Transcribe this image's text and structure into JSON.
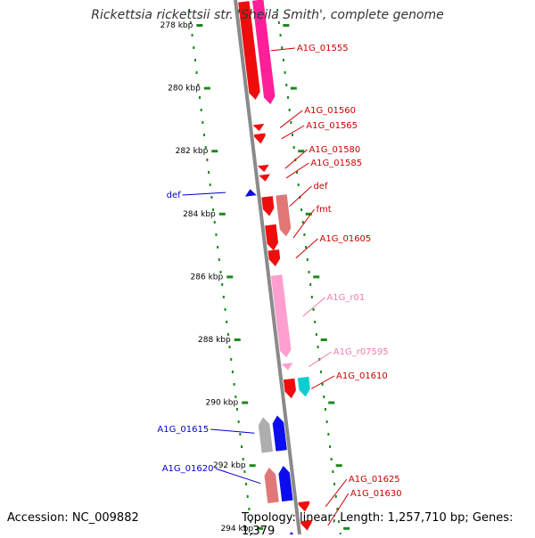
{
  "title": "Rickettsia rickettsii str. 'Sheila Smith', complete genome",
  "footer": {
    "accession": "Accession: NC_009882",
    "summary": "Topology: linear; Length: 1,257,710 bp; Genes: 1,379"
  },
  "colors": {
    "backbone": "#8a8a8a",
    "tick": "#1a8a1a",
    "forward_label": "#cc0000",
    "reverse_label": "#0000cc",
    "rna_label": "#f07cb0"
  },
  "ruler": {
    "unit": "kbp",
    "ticks": [
      {
        "kb": 278,
        "label": "278 kbp"
      },
      {
        "kb": 280,
        "label": "280 kbp"
      },
      {
        "kb": 282,
        "label": "282 kbp"
      },
      {
        "kb": 284,
        "label": "284 kbp"
      },
      {
        "kb": 286,
        "label": "286 kbp"
      },
      {
        "kb": 288,
        "label": "288 kbp"
      },
      {
        "kb": 290,
        "label": "290 kbp"
      },
      {
        "kb": 292,
        "label": "292 kbp"
      },
      {
        "kb": 294,
        "label": "294 kbp"
      }
    ]
  },
  "features": [
    {
      "name": "A1G_01555",
      "strand": "+",
      "track": 1,
      "start_kb": 277.3,
      "end_kb": 280.4,
      "color": "#ee0000"
    },
    {
      "name": "",
      "strand": "+",
      "track": 2,
      "start_kb": 277.3,
      "end_kb": 280.6,
      "color": "#ff1493"
    },
    {
      "name": "A1G_01560",
      "strand": "+",
      "track": 1,
      "start_kb": 281.2,
      "end_kb": 281.4,
      "color": "#ee0000"
    },
    {
      "name": "A1G_01565",
      "strand": "+",
      "track": 1,
      "start_kb": 281.5,
      "end_kb": 281.8,
      "color": "#ee0000"
    },
    {
      "name": "A1G_01580",
      "strand": "+",
      "track": 1,
      "start_kb": 282.5,
      "end_kb": 282.7,
      "color": "#ee0000"
    },
    {
      "name": "A1G_01585",
      "strand": "+",
      "track": 1,
      "start_kb": 282.8,
      "end_kb": 283.0,
      "color": "#ee0000"
    },
    {
      "name": "def",
      "strand": "-",
      "track": -1,
      "start_kb": 283.2,
      "end_kb": 283.4,
      "color": "#0000dd"
    },
    {
      "name": "def",
      "strand": "+",
      "track": 1,
      "start_kb": 283.5,
      "end_kb": 284.1,
      "color": "#ee0000"
    },
    {
      "name": "",
      "strand": "+",
      "track": 2,
      "start_kb": 283.5,
      "end_kb": 284.8,
      "color": "#e07070"
    },
    {
      "name": "fmt",
      "strand": "+",
      "track": 1,
      "start_kb": 284.4,
      "end_kb": 285.2,
      "color": "#ee0000"
    },
    {
      "name": "A1G_01605",
      "strand": "+",
      "track": 1,
      "start_kb": 285.2,
      "end_kb": 285.7,
      "color": "#ee0000"
    },
    {
      "name": "A1G_r01",
      "strand": "+",
      "track": 1,
      "start_kb": 286.0,
      "end_kb": 288.6,
      "color": "#ff9acd"
    },
    {
      "name": "A1G_r07595",
      "strand": "+",
      "track": 1,
      "start_kb": 288.8,
      "end_kb": 289.0,
      "color": "#ff9acd"
    },
    {
      "name": "A1G_01610",
      "strand": "+",
      "track": 1,
      "start_kb": 289.3,
      "end_kb": 289.9,
      "color": "#ee0000"
    },
    {
      "name": "",
      "strand": "+",
      "track": 2,
      "start_kb": 289.3,
      "end_kb": 289.9,
      "color": "#00cccc"
    },
    {
      "name": "A1G_01615",
      "strand": "-",
      "track": -1,
      "start_kb": 290.4,
      "end_kb": 291.5,
      "color": "#0000ee"
    },
    {
      "name": "",
      "strand": "-",
      "track": -2,
      "start_kb": 290.4,
      "end_kb": 291.5,
      "color": "#aaaaaa"
    },
    {
      "name": "A1G_01620",
      "strand": "-",
      "track": -1,
      "start_kb": 292.0,
      "end_kb": 293.1,
      "color": "#0000ee"
    },
    {
      "name": "",
      "strand": "-",
      "track": -2,
      "start_kb": 292.0,
      "end_kb": 293.1,
      "color": "#e07070"
    },
    {
      "name": "A1G_01625",
      "strand": "+",
      "track": 1,
      "start_kb": 293.2,
      "end_kb": 293.5,
      "color": "#ee0000"
    },
    {
      "name": "A1G_01630",
      "strand": "+",
      "track": 1,
      "start_kb": 293.8,
      "end_kb": 294.1,
      "color": "#ee0000"
    },
    {
      "name": "",
      "strand": "-",
      "track": -1,
      "start_kb": 294.1,
      "end_kb": 294.6,
      "color": "#0000ee"
    },
    {
      "name": "",
      "strand": "-",
      "track": -2,
      "start_kb": 294.1,
      "end_kb": 294.6,
      "color": "#00dd99"
    }
  ]
}
